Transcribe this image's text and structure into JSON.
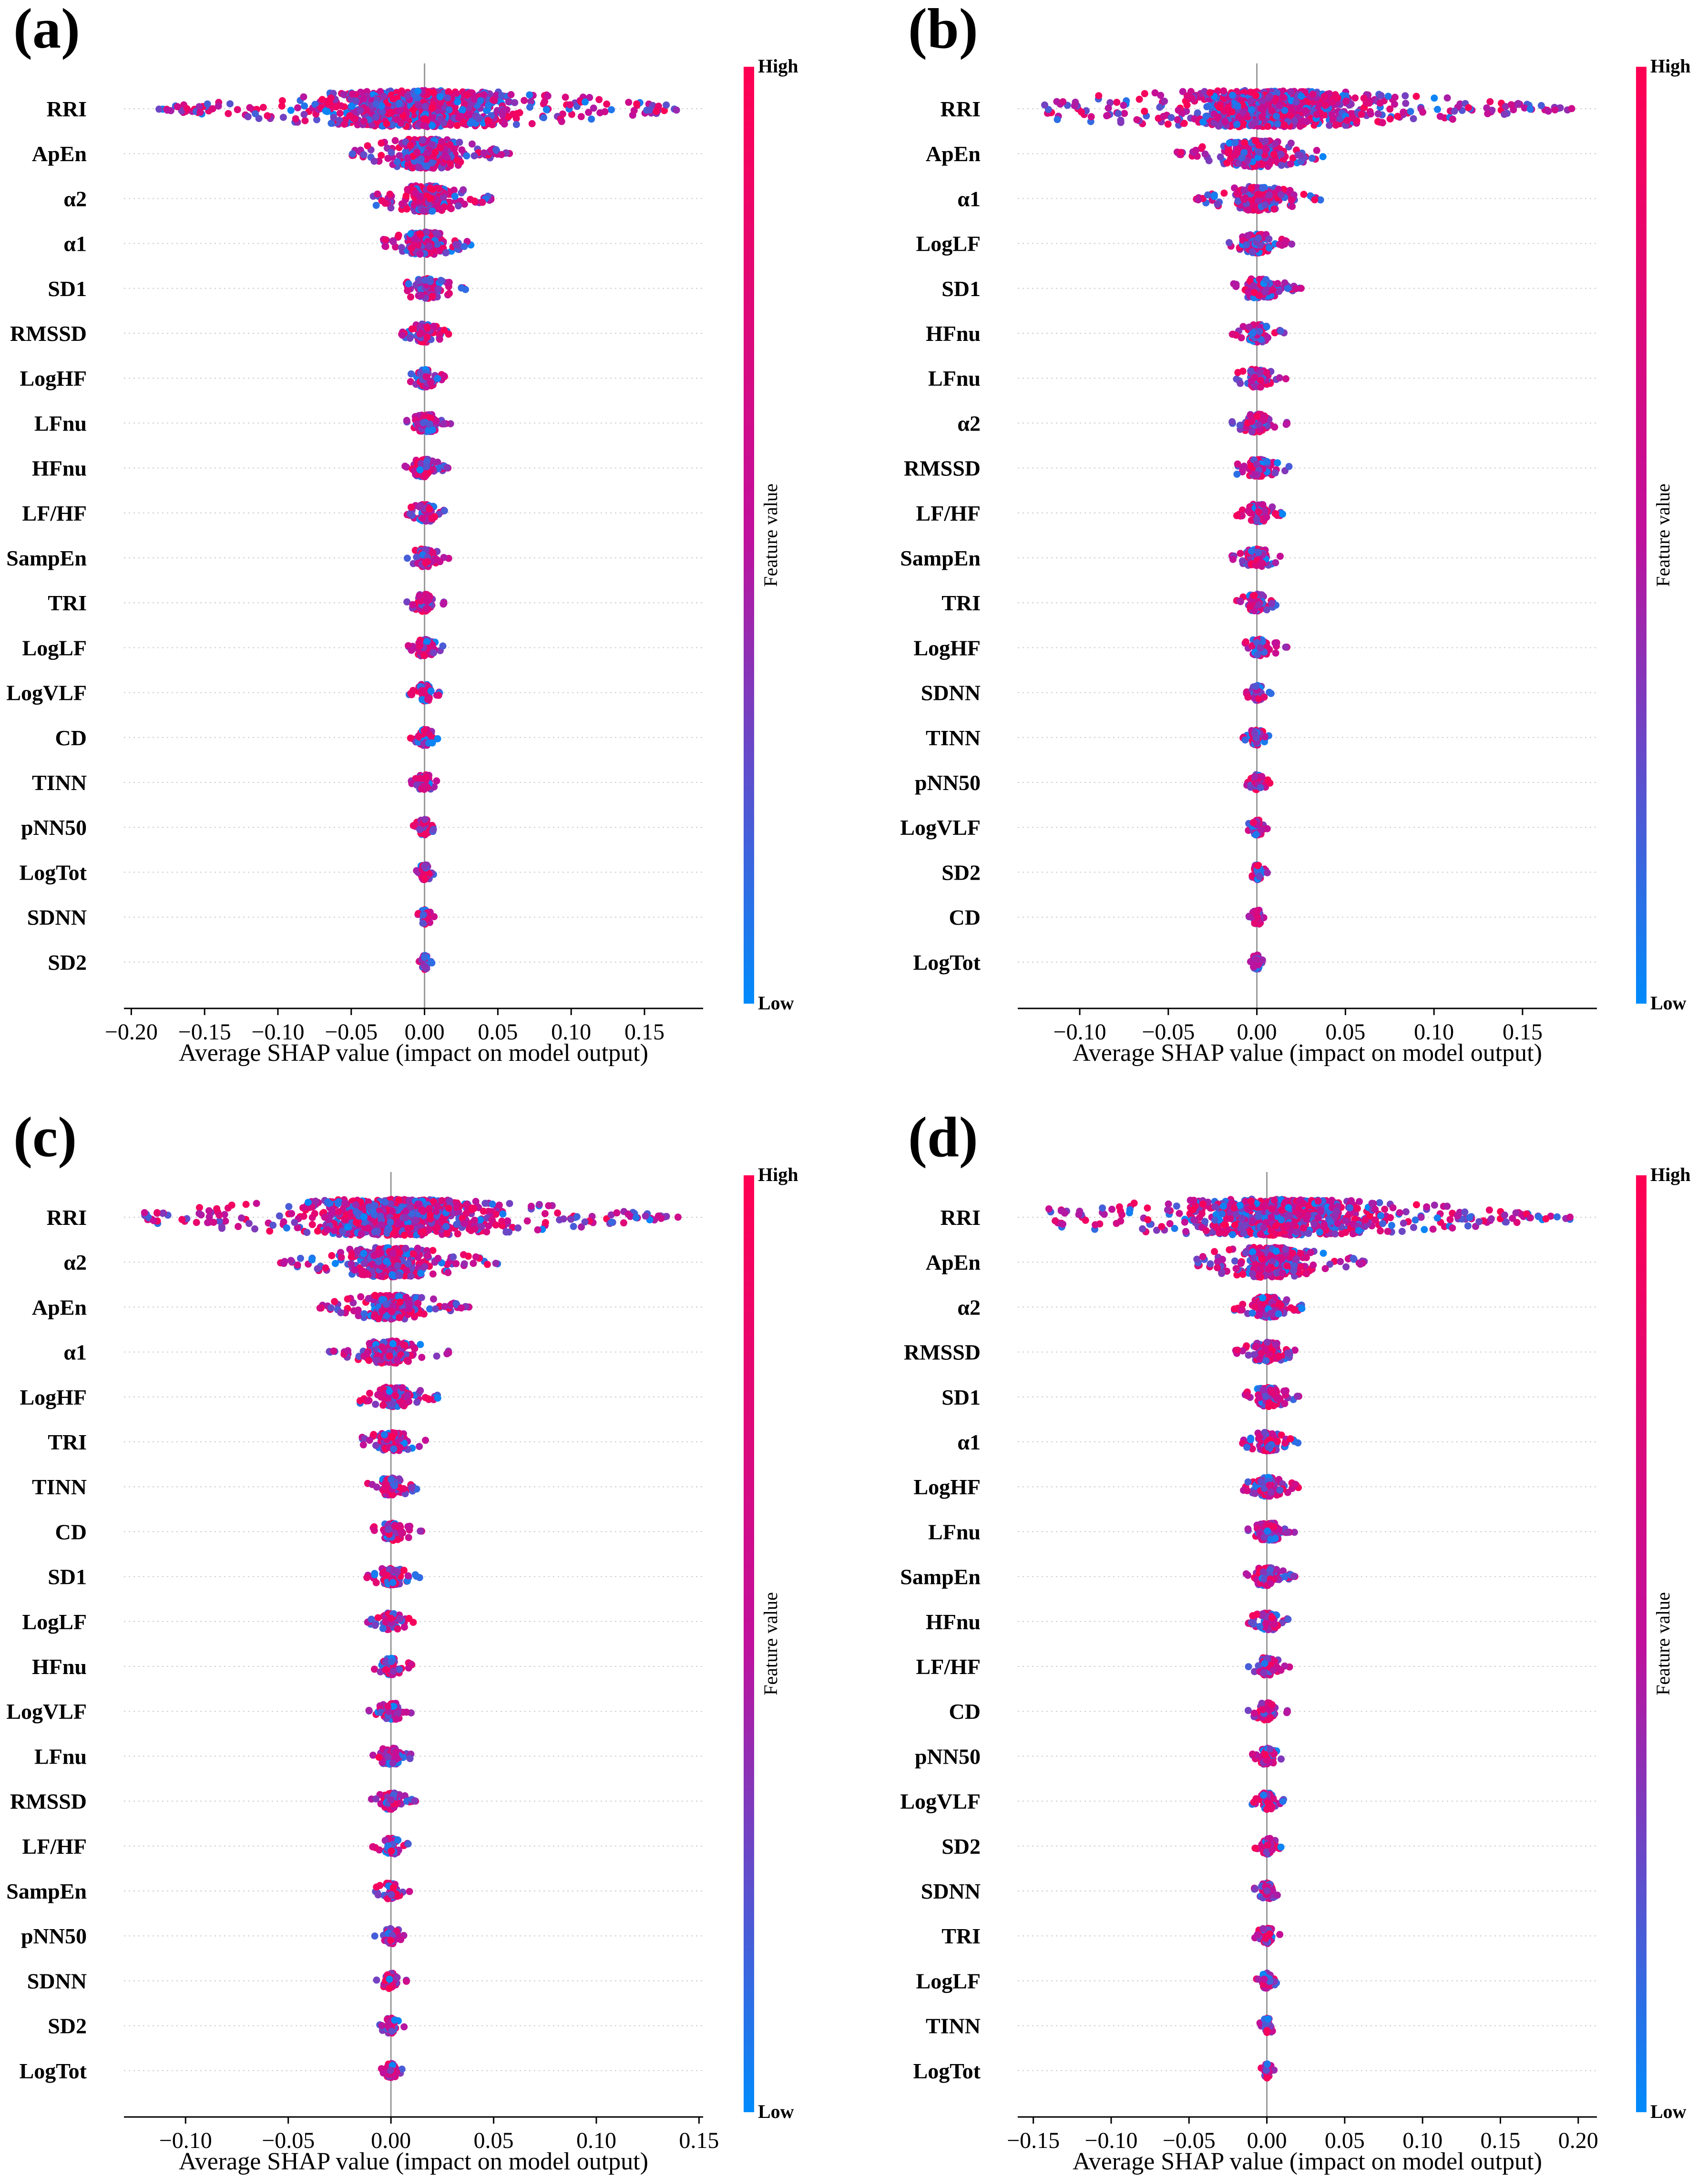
{
  "figure": {
    "type": "shap-beeswarm-summary"
  },
  "colors": {
    "high": "#ff0052",
    "mid": "#c0109c",
    "low": "#008bfb",
    "zero_line": "#999999",
    "guide": "#cccccc",
    "axis": "#000000"
  },
  "chart_data": [
    {
      "type": "scatter",
      "subtype": "beeswarm",
      "panel": "(a)",
      "title": "",
      "xlabel": "Average SHAP value (impact on model output)",
      "ylabel": "",
      "xlim": [
        -0.205,
        0.19
      ],
      "xticks": [
        -0.2,
        -0.15,
        -0.1,
        -0.05,
        0.0,
        0.05,
        0.1,
        0.15
      ],
      "xtick_labels": [
        "−0.20",
        "−0.15",
        "−0.10",
        "−0.05",
        "0.00",
        "0.05",
        "0.10",
        "0.15"
      ],
      "colorbar": {
        "label": "Feature value",
        "high": "High",
        "low": "Low"
      },
      "features": [
        "RRI",
        "ApEn",
        "α2",
        "α1",
        "SD1",
        "RMSSD",
        "LogHF",
        "LFnu",
        "HFnu",
        "LF/HF",
        "SampEn",
        "TRI",
        "LogLF",
        "LogVLF",
        "CD",
        "TINN",
        "pNN50",
        "LogTot",
        "SDNN",
        "SD2"
      ],
      "spread": [
        [
          -0.185,
          0.175
        ],
        [
          -0.05,
          0.058
        ],
        [
          -0.035,
          0.048
        ],
        [
          -0.028,
          0.035
        ],
        [
          -0.018,
          0.028
        ],
        [
          -0.016,
          0.018
        ],
        [
          -0.012,
          0.016
        ],
        [
          -0.014,
          0.018
        ],
        [
          -0.014,
          0.016
        ],
        [
          -0.012,
          0.016
        ],
        [
          -0.012,
          0.018
        ],
        [
          -0.012,
          0.014
        ],
        [
          -0.012,
          0.014
        ],
        [
          -0.011,
          0.012
        ],
        [
          -0.01,
          0.01
        ],
        [
          -0.009,
          0.01
        ],
        [
          -0.008,
          0.009
        ],
        [
          -0.007,
          0.008
        ],
        [
          -0.006,
          0.007
        ],
        [
          -0.005,
          0.005
        ]
      ]
    },
    {
      "type": "scatter",
      "subtype": "beeswarm",
      "panel": "(b)",
      "title": "",
      "xlabel": "Average SHAP value (impact on model output)",
      "ylabel": "",
      "xlim": [
        -0.135,
        0.192
      ],
      "xticks": [
        -0.1,
        -0.05,
        0.0,
        0.05,
        0.1,
        0.15
      ],
      "xtick_labels": [
        "−0.10",
        "−0.05",
        "0.00",
        "0.05",
        "0.10",
        "0.15"
      ],
      "colorbar": {
        "label": "Feature value",
        "high": "High",
        "low": "Low"
      },
      "features": [
        "RRI",
        "ApEn",
        "α1",
        "LogLF",
        "SD1",
        "HFnu",
        "LFnu",
        "α2",
        "RMSSD",
        "LF/HF",
        "SampEn",
        "TRI",
        "LogHF",
        "SDNN",
        "TINN",
        "pNN50",
        "LogVLF",
        "SD2",
        "CD",
        "LogTot"
      ],
      "spread": [
        [
          -0.12,
          0.178
        ],
        [
          -0.045,
          0.042
        ],
        [
          -0.035,
          0.036
        ],
        [
          -0.018,
          0.02
        ],
        [
          -0.014,
          0.025
        ],
        [
          -0.014,
          0.016
        ],
        [
          -0.014,
          0.018
        ],
        [
          -0.014,
          0.018
        ],
        [
          -0.012,
          0.02
        ],
        [
          -0.012,
          0.016
        ],
        [
          -0.014,
          0.016
        ],
        [
          -0.012,
          0.014
        ],
        [
          -0.01,
          0.018
        ],
        [
          -0.008,
          0.008
        ],
        [
          -0.008,
          0.008
        ],
        [
          -0.006,
          0.008
        ],
        [
          -0.006,
          0.008
        ],
        [
          -0.005,
          0.006
        ],
        [
          -0.005,
          0.005
        ],
        [
          -0.004,
          0.004
        ]
      ]
    },
    {
      "type": "scatter",
      "subtype": "beeswarm",
      "panel": "(c)",
      "title": "",
      "xlabel": "Average SHAP value (impact on model output)",
      "ylabel": "",
      "xlim": [
        -0.13,
        0.152
      ],
      "xticks": [
        -0.1,
        -0.05,
        0.0,
        0.05,
        0.1,
        0.15
      ],
      "xtick_labels": [
        "−0.10",
        "−0.05",
        "0.00",
        "0.05",
        "0.10",
        "0.15"
      ],
      "colorbar": {
        "label": "Feature value",
        "high": "High",
        "low": "Low"
      },
      "features": [
        "RRI",
        "α2",
        "ApEn",
        "α1",
        "LogHF",
        "TRI",
        "TINN",
        "CD",
        "SD1",
        "LogLF",
        "HFnu",
        "LogVLF",
        "LFnu",
        "RMSSD",
        "LF/HF",
        "SampEn",
        "pNN50",
        "SDNN",
        "SD2",
        "LogTot"
      ],
      "spread": [
        [
          -0.12,
          0.14
        ],
        [
          -0.055,
          0.052
        ],
        [
          -0.035,
          0.038
        ],
        [
          -0.03,
          0.03
        ],
        [
          -0.016,
          0.025
        ],
        [
          -0.014,
          0.02
        ],
        [
          -0.012,
          0.016
        ],
        [
          -0.012,
          0.016
        ],
        [
          -0.012,
          0.014
        ],
        [
          -0.012,
          0.012
        ],
        [
          -0.01,
          0.012
        ],
        [
          -0.012,
          0.01
        ],
        [
          -0.01,
          0.012
        ],
        [
          -0.01,
          0.012
        ],
        [
          -0.009,
          0.01
        ],
        [
          -0.009,
          0.01
        ],
        [
          -0.008,
          0.009
        ],
        [
          -0.007,
          0.008
        ],
        [
          -0.006,
          0.007
        ],
        [
          -0.005,
          0.006
        ]
      ]
    },
    {
      "type": "scatter",
      "subtype": "beeswarm",
      "panel": "(d)",
      "title": "",
      "xlabel": "Average SHAP value (impact on model output)",
      "ylabel": "",
      "xlim": [
        -0.16,
        0.212
      ],
      "xticks": [
        -0.15,
        -0.1,
        -0.05,
        0.0,
        0.05,
        0.1,
        0.15,
        0.2
      ],
      "xtick_labels": [
        "−0.15",
        "−0.10",
        "−0.05",
        "0.00",
        "0.05",
        "0.10",
        "0.15",
        "0.20"
      ],
      "colorbar": {
        "label": "Feature value",
        "high": "High",
        "low": "Low"
      },
      "features": [
        "RRI",
        "ApEn",
        "α2",
        "RMSSD",
        "SD1",
        "α1",
        "LogHF",
        "LFnu",
        "SampEn",
        "HFnu",
        "LF/HF",
        "CD",
        "pNN50",
        "LogVLF",
        "SD2",
        "SDNN",
        "TRI",
        "LogLF",
        "TINN",
        "LogTot"
      ],
      "spread": [
        [
          -0.14,
          0.195
        ],
        [
          -0.045,
          0.065
        ],
        [
          -0.022,
          0.025
        ],
        [
          -0.02,
          0.022
        ],
        [
          -0.018,
          0.022
        ],
        [
          -0.016,
          0.02
        ],
        [
          -0.016,
          0.022
        ],
        [
          -0.014,
          0.018
        ],
        [
          -0.014,
          0.018
        ],
        [
          -0.012,
          0.016
        ],
        [
          -0.012,
          0.016
        ],
        [
          -0.012,
          0.014
        ],
        [
          -0.01,
          0.012
        ],
        [
          -0.01,
          0.012
        ],
        [
          -0.008,
          0.01
        ],
        [
          -0.008,
          0.01
        ],
        [
          -0.008,
          0.01
        ],
        [
          -0.007,
          0.008
        ],
        [
          -0.006,
          0.007
        ],
        [
          -0.005,
          0.005
        ]
      ]
    }
  ]
}
